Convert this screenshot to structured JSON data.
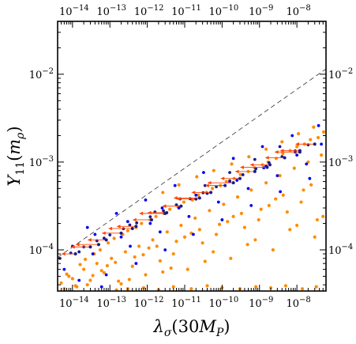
{
  "chart_data": {
    "type": "scatter",
    "x_scale": "log",
    "y_scale": "log",
    "xlim": [
      4e-15,
      6e-08
    ],
    "ylim": [
      3.4e-05,
      0.04
    ],
    "xlabel": "λσ(30MP)",
    "ylabel": "Y11(mρ)",
    "xtick_values": [
      1e-14,
      1e-13,
      1e-12,
      1e-11,
      1e-10,
      1e-09,
      1e-08
    ],
    "xtick_labels": [
      "10−14",
      "10−13",
      "10−12",
      "10−11",
      "10−10",
      "10−9",
      "10−8"
    ],
    "ytick_values": [
      0.0001,
      0.001,
      0.01
    ],
    "ytick_labels": [
      "10−4",
      "10−3",
      "10−2"
    ],
    "boundary_line": {
      "style": "dashed",
      "x": [
        4e-15,
        6e-08
      ],
      "y": [
        8.2e-05,
        0.0115
      ]
    },
    "series": [
      {
        "marker": "dot",
        "color": "#ff8c00",
        "x": [
          5e-15,
          8e-15,
          1.3e-14,
          2e-14,
          3e-14,
          4.5e-14,
          7e-14,
          1.1e-13,
          1.7e-13,
          2.6e-13,
          4e-13,
          6e-13,
          9e-13,
          1.4e-12,
          2.2e-12,
          3.4e-12,
          5e-12,
          8e-12,
          1.2e-11,
          1.9e-11,
          3e-11,
          4.6e-11,
          7e-11,
          1.1e-10,
          1.7e-10,
          2.6e-10,
          4e-10,
          6e-10,
          9.5e-10,
          1.5e-09,
          2.3e-09,
          3.5e-09,
          5.5e-09,
          8.5e-09,
          1.3e-08,
          2e-08,
          3e-08,
          4.5e-08,
          6e-15,
          1e-14,
          1.6e-14,
          2.5e-14,
          3.8e-14,
          6e-14,
          9e-14,
          1.4e-13,
          2.2e-13,
          3.3e-13,
          5e-13,
          7.8e-13,
          1.2e-12,
          1.8e-12,
          2.8e-12,
          4.3e-12,
          6.6e-12,
          1e-11,
          1.6e-11,
          2.5e-11,
          3.8e-11,
          5.8e-11,
          9e-11,
          1.4e-10,
          2.1e-10,
          3.3e-10,
          5e-10,
          7.7e-10,
          1.2e-09,
          1.8e-09,
          2.8e-09,
          4.3e-09,
          6.6e-09,
          1e-08,
          1.6e-08,
          2.4e-08,
          3.7e-08,
          5e-08,
          7e-15,
          1.2e-14,
          2.2e-14,
          3.5e-14,
          5.5e-14,
          8.5e-14,
          1.3e-13,
          2e-13,
          3e-13,
          4.6e-13,
          7e-13,
          1.1e-12,
          1.7e-12,
          2.6e-12,
          4e-12,
          6e-12,
          9.5e-12,
          1.5e-11,
          2.3e-11,
          3.5e-11,
          5.5e-11,
          8.5e-11,
          1.3e-10,
          2e-10,
          3.1e-10,
          4.8e-10,
          7.4e-10,
          1.1e-09,
          1.7e-09,
          2.7e-09,
          4.2e-09,
          6.5e-09,
          1e-08,
          1.5e-08,
          2.3e-08,
          3.5e-08,
          5.2e-08,
          1.5e-13,
          3e-13,
          8e-13,
          2e-12,
          5e-12,
          1.5e-11,
          4e-11,
          1e-10,
          3e-10,
          8e-10,
          2e-09,
          5e-09,
          1.4e-08,
          3.3e-08,
          2.6e-12,
          7e-12,
          2.1e-11,
          6e-11,
          1.8e-10,
          5.2e-10,
          1.5e-09,
          4e-09,
          1.1e-08,
          2.8e-08
        ],
        "y": [
          4.2e-05,
          5e-05,
          3.8e-05,
          6e-05,
          4.5e-05,
          7e-05,
          5.5e-05,
          8e-05,
          4.4e-05,
          9.5e-05,
          6.5e-05,
          0.00011,
          5.2e-05,
          0.00013,
          7.5e-05,
          0.00016,
          9e-05,
          0.00019,
          6e-05,
          0.00023,
          0.00012,
          0.00028,
          0.00015,
          0.00033,
          8e-05,
          0.0004,
          0.00018,
          0.00048,
          0.00022,
          0.00058,
          0.0001,
          0.0007,
          0.00027,
          0.00085,
          0.00035,
          0.001,
          0.00014,
          0.0012,
          3.6e-05,
          4.7e-05,
          6.8e-05,
          4e-05,
          9e-05,
          5.8e-05,
          0.00012,
          7.2e-05,
          0.00015,
          4.6e-05,
          0.00018,
          8.8e-05,
          0.00022,
          0.00011,
          0.00026,
          6.2e-05,
          0.00031,
          0.00014,
          0.00037,
          0.00017,
          0.00045,
          9.5e-05,
          0.00054,
          0.00021,
          0.00065,
          0.00026,
          0.00078,
          0.00013,
          0.00093,
          0.00032,
          0.0011,
          0.00042,
          0.00135,
          0.00019,
          0.0016,
          0.00055,
          0.0019,
          0.00024,
          5.3e-05,
          3.9e-05,
          7.8e-05,
          5.1e-05,
          0.0001,
          6.6e-05,
          0.000135,
          4.1e-05,
          0.000165,
          8.3e-05,
          0.0002,
          0.000105,
          0.00024,
          5.6e-05,
          0.00029,
          0.000125,
          0.00035,
          0.000155,
          0.00042,
          7.4e-05,
          0.0005,
          0.000195,
          0.0006,
          0.00024,
          0.00072,
          0.000115,
          0.00086,
          0.00029,
          0.001,
          0.00038,
          0.00125,
          0.00017,
          0.0015,
          0.00048,
          0.0018,
          0.00022,
          0.0022,
          3.5e-05,
          3.6e-05,
          3.7e-05,
          3.5e-05,
          3.8e-05,
          3.6e-05,
          3.9e-05,
          3.7e-05,
          3.6e-05,
          3.8e-05,
          3.7e-05,
          3.9e-05,
          3.6e-05,
          3.8e-05,
          0.00045,
          0.00055,
          0.00068,
          0.0008,
          0.00095,
          0.00115,
          0.0014,
          0.0017,
          0.0021,
          0.0025
        ]
      },
      {
        "marker": "dot",
        "color": "#0000ee",
        "x": [
          6e-15,
          1.5e-14,
          3.5e-14,
          8e-14,
          2e-13,
          5e-13,
          1.2e-12,
          3e-12,
          7e-12,
          1.7e-11,
          4e-11,
          1e-10,
          2.5e-10,
          6e-10,
          1.5e-09,
          3.6e-09,
          9e-09,
          2.2e-08,
          4.5e-08,
          1e-14,
          2.5e-14,
          6e-14,
          1.5e-13,
          3.5e-13,
          9e-13,
          2.2e-12,
          5.5e-12,
          1.3e-11,
          3.2e-11,
          8e-11,
          2e-10,
          5e-10,
          1.2e-09,
          3e-09,
          7.5e-09,
          1.8e-08,
          3.8e-08,
          4e-14,
          3e-13,
          2.5e-12,
          2e-11,
          1.6e-10,
          1.3e-09,
          1e-08
        ],
        "y": [
          6e-05,
          4.5e-05,
          9e-05,
          5.2e-05,
          0.00014,
          7e-05,
          0.0002,
          0.0001,
          0.0003,
          0.00015,
          0.00044,
          0.00022,
          0.00062,
          0.00032,
          0.0009,
          0.00046,
          0.0013,
          0.00065,
          0.0016,
          0.00011,
          0.00018,
          3.8e-05,
          0.00026,
          0.00011,
          0.00037,
          0.00016,
          0.00054,
          0.00024,
          0.00076,
          0.00035,
          0.0011,
          0.0005,
          0.0015,
          0.0007,
          0.002,
          0.00095,
          0.0026,
          0.00015,
          0.00021,
          0.0003,
          0.00042,
          0.0006,
          0.00086,
          0.0012
        ]
      },
      {
        "marker": "dot",
        "color": "#1a1a8c",
        "name_none": "",
        "x": [
          4.6e-15,
          9e-15,
          2e-14,
          4.5e-14,
          1e-13,
          2.3e-13,
          5.2e-13,
          1.2e-12,
          2.7e-12,
          6e-12,
          1.4e-11,
          3.1e-11,
          7e-11,
          1.6e-10,
          3.6e-10,
          8e-10,
          1.8e-09,
          4e-09,
          9e-09,
          2e-08,
          1.5e-14,
          7e-14,
          3.4e-13,
          1.6e-12,
          7.5e-12,
          3.5e-11,
          1.6e-10,
          7.5e-10,
          3.5e-09
        ],
        "y": [
          8e-05,
          9.2e-05,
          0.000108,
          0.000127,
          0.000148,
          0.000174,
          0.000203,
          0.000238,
          0.000279,
          0.000326,
          0.000382,
          0.000447,
          0.000523,
          0.000612,
          0.000717,
          0.000839,
          0.000982,
          0.00115,
          0.00134,
          0.00157,
          9.5e-05,
          0.000136,
          0.000192,
          0.00027,
          0.00038,
          0.00054,
          0.00076,
          0.00107,
          0.0015
        ]
      },
      {
        "marker": "arrow-left",
        "color": "#ff4500",
        "x1": [
          1.2e-14,
          3e-14,
          8e-14,
          2e-13,
          5e-13,
          1.3e-12,
          3.3e-12,
          8e-12,
          2e-11,
          5e-11,
          1.2e-10,
          3e-10,
          7.5e-10,
          1.9e-09,
          4.7e-09,
          1.2e-08,
          3e-08,
          5e-14,
          4e-13,
          3e-12,
          2.5e-11,
          2e-10,
          1.6e-09,
          1.2e-08
        ],
        "x0": [
          5e-15,
          9e-15,
          2.5e-14,
          6e-14,
          1.5e-13,
          4e-13,
          1e-12,
          2.5e-12,
          6e-12,
          1.5e-11,
          3.5e-11,
          9e-11,
          2.2e-10,
          5.5e-10,
          1.4e-09,
          3.5e-09,
          9e-09,
          1.2e-14,
          9e-14,
          6e-13,
          5e-12,
          4e-11,
          3e-10,
          2.5e-09
        ],
        "y": [
          9e-05,
          0.000108,
          0.00013,
          0.000155,
          0.000185,
          0.00022,
          0.000265,
          0.000315,
          0.00038,
          0.00045,
          0.00054,
          0.00065,
          0.00078,
          0.00093,
          0.00112,
          0.00135,
          0.0016,
          0.000115,
          0.000175,
          0.00026,
          0.00039,
          0.00058,
          0.00087,
          0.0013
        ]
      }
    ]
  }
}
